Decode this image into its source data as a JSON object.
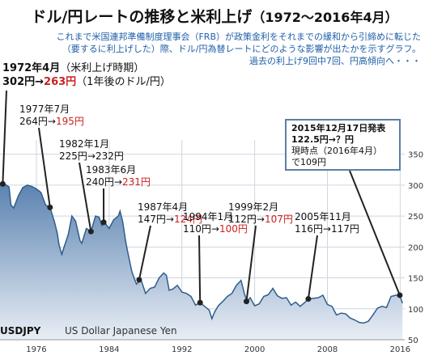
{
  "title": {
    "main": "ドル/円レートの推移と米利上げ",
    "period": "（1972～2016年4月）"
  },
  "description": {
    "line1": "これまで米国連邦準備制度理事会（FRB）が政策金利をそれまでの緩和から引締めに転じた",
    "line2": "（要するに利上げした）際、ドル/円為替レートにどのような影響が出たかを示すグラフ。",
    "line3": "過去の利上げ9回中7回、円高傾向へ・・・"
  },
  "annotations": {
    "a1972": {
      "date": "1972年4月",
      "note": "（米利上げ時期）",
      "from": "302円→",
      "to": "263円",
      "note2": "（1年後のドル/円）"
    },
    "a1977": {
      "date": "1977年7月",
      "from": "264円→",
      "to": "195円"
    },
    "a1982": {
      "date": "1982年1月",
      "from": "225円→",
      "to": "232円"
    },
    "a1983": {
      "date": "1983年6月",
      "from": "240円→",
      "to": "231円"
    },
    "a1987": {
      "date": "1987年4月",
      "from": "147円→",
      "to": "124円"
    },
    "a1994": {
      "date": "1994年1月",
      "from": "110円→",
      "to": "100円"
    },
    "a1999": {
      "date": "1999年2月",
      "from": "112円→",
      "to": "107円"
    },
    "a2005": {
      "date": "2005年11月",
      "from": "116円→",
      "to": "117円"
    },
    "a2015": {
      "line1": "2015年12月17日発表",
      "line2": "122.5円→？円",
      "line3": "現時点（2016年4月）",
      "line4": "で109円"
    }
  },
  "series_label": {
    "ticker": "USDJPY",
    "name": "US Dollar Japanese Yen"
  },
  "colors": {
    "area_top": "#5a82b0",
    "area_bottom": "#e9eef5",
    "line": "#2f5d8c",
    "grid": "#cfd6df",
    "red": "#cc1f1f",
    "blue_text": "#1f5fa8"
  },
  "chart_data": {
    "type": "area",
    "title": "ドル/円レートの推移と米利上げ",
    "xlabel": "",
    "ylabel": "",
    "xlim": [
      1972,
      2016.5
    ],
    "ylim": [
      50,
      360
    ],
    "x_ticks": [
      1976,
      1984,
      1992,
      2000,
      2008,
      2016
    ],
    "y_ticks": [
      50,
      100,
      150,
      200,
      250,
      300,
      350
    ],
    "grid": true,
    "y_axis_position": "right",
    "series": [
      {
        "name": "USDJPY",
        "x": [
          1972,
          1972.5,
          1973,
          1973.2,
          1973.5,
          1974,
          1974.5,
          1975,
          1975.5,
          1976,
          1976.5,
          1977,
          1977.5,
          1978,
          1978.3,
          1978.5,
          1978.8,
          1979,
          1979.5,
          1979.9,
          1980.3,
          1980.8,
          1981,
          1981.5,
          1982,
          1982.5,
          1982.9,
          1983.2,
          1983.5,
          1984,
          1984.5,
          1985,
          1985.2,
          1985.5,
          1985.8,
          1986,
          1986.5,
          1987,
          1987.5,
          1988,
          1988.5,
          1989,
          1989.5,
          1990,
          1990.3,
          1990.6,
          1991,
          1991.5,
          1992,
          1992.5,
          1993,
          1993.5,
          1994,
          1994.5,
          1995,
          1995.3,
          1995.6,
          1996,
          1996.5,
          1997,
          1997.5,
          1998,
          1998.5,
          1998.9,
          1999.2,
          1999.5,
          2000,
          2000.5,
          2001,
          2001.5,
          2002,
          2002.5,
          2003,
          2003.5,
          2004,
          2004.5,
          2005,
          2005.5,
          2005.9,
          2006.5,
          2007,
          2007.5,
          2008,
          2008.5,
          2009,
          2009.5,
          2010,
          2010.5,
          2011,
          2011.5,
          2012,
          2012.5,
          2013,
          2013.5,
          2014,
          2014.5,
          2015,
          2015.5,
          2015.96,
          2016.25
        ],
        "values": [
          303,
          302,
          297,
          268,
          263,
          282,
          296,
          300,
          298,
          294,
          288,
          268,
          264,
          240,
          222,
          203,
          188,
          198,
          220,
          250,
          242,
          210,
          206,
          230,
          225,
          250,
          248,
          235,
          240,
          230,
          244,
          250,
          258,
          240,
          210,
          195,
          160,
          140,
          147,
          125,
          133,
          135,
          150,
          158,
          154,
          130,
          132,
          138,
          127,
          125,
          120,
          106,
          110,
          104,
          98,
          84,
          95,
          105,
          112,
          120,
          125,
          138,
          146,
          123,
          112,
          118,
          105,
          108,
          120,
          123,
          133,
          121,
          117,
          118,
          106,
          111,
          104,
          110,
          116,
          117,
          118,
          122,
          107,
          104,
          90,
          93,
          92,
          85,
          82,
          78,
          77,
          80,
          90,
          101,
          104,
          102,
          120,
          122,
          122,
          109
        ]
      }
    ]
  }
}
